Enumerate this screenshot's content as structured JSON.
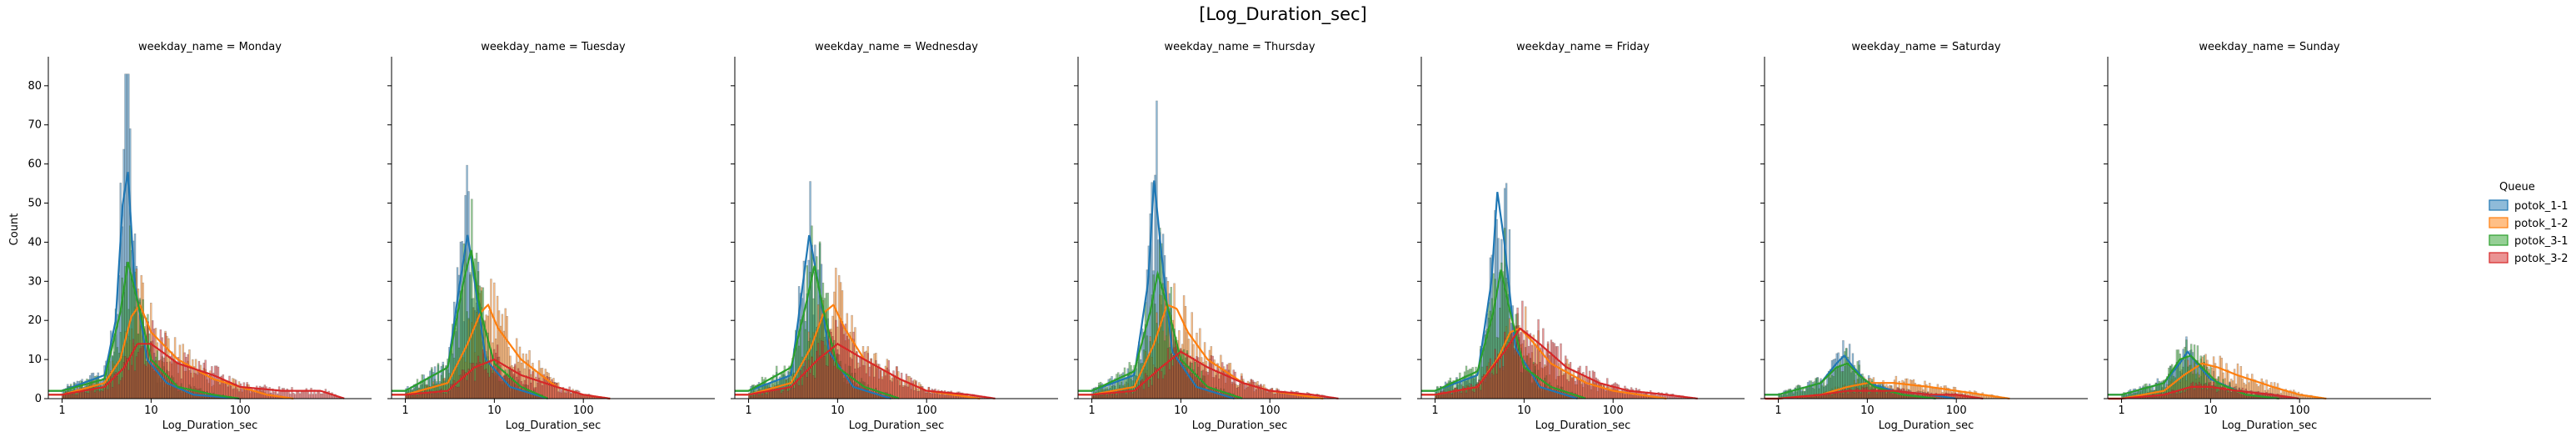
{
  "chart_data": {
    "type": "histogram",
    "title": "[Log_Duration_sec]",
    "xlabel": "Log_Duration_sec",
    "ylabel": "Count",
    "x_scale": "log",
    "xlim": [
      0.7,
      3000
    ],
    "ylim": [
      0,
      87
    ],
    "y_ticks": [
      0,
      10,
      20,
      30,
      40,
      50,
      60,
      70,
      80
    ],
    "x_ticks": [
      1,
      10,
      100
    ],
    "grid": false,
    "legend": {
      "title": "Queue",
      "placement": "right"
    },
    "series": [
      {
        "name": "potok_1-1",
        "color": "#1f77b4"
      },
      {
        "name": "potok_1-2",
        "color": "#ff7f0e"
      },
      {
        "name": "potok_3-1",
        "color": "#2ca02c"
      },
      {
        "name": "potok_3-2",
        "color": "#d62728"
      }
    ],
    "facets": [
      {
        "label": "weekday_name = Monday",
        "kde": {
          "potok_1-1": [
            [
              1,
              2
            ],
            [
              3,
              6
            ],
            [
              4,
              20
            ],
            [
              4.8,
              50
            ],
            [
              5.5,
              58
            ],
            [
              6.5,
              30
            ],
            [
              9,
              10
            ],
            [
              15,
              4
            ],
            [
              30,
              1
            ],
            [
              100,
              0
            ]
          ],
          "potok_1-2": [
            [
              1,
              1
            ],
            [
              3,
              4
            ],
            [
              4.5,
              10
            ],
            [
              6,
              21
            ],
            [
              7.5,
              24
            ],
            [
              10,
              17
            ],
            [
              20,
              10
            ],
            [
              50,
              5
            ],
            [
              100,
              3
            ],
            [
              200,
              1
            ],
            [
              400,
              0
            ]
          ],
          "potok_3-1": [
            [
              1,
              2
            ],
            [
              3,
              5
            ],
            [
              4.5,
              22
            ],
            [
              5.5,
              35
            ],
            [
              7,
              25
            ],
            [
              10,
              10
            ],
            [
              20,
              3
            ],
            [
              50,
              1
            ],
            [
              100,
              0
            ]
          ],
          "potok_3-2": [
            [
              1,
              1
            ],
            [
              3,
              3
            ],
            [
              5,
              8
            ],
            [
              7,
              14
            ],
            [
              10,
              14
            ],
            [
              20,
              9
            ],
            [
              50,
              6
            ],
            [
              100,
              3
            ],
            [
              300,
              2
            ],
            [
              800,
              2
            ],
            [
              1500,
              0
            ]
          ]
        }
      },
      {
        "label": "weekday_name = Tuesday",
        "kde": {
          "potok_1-1": [
            [
              1,
              2
            ],
            [
              3,
              8
            ],
            [
              4,
              28
            ],
            [
              5,
              42
            ],
            [
              6,
              30
            ],
            [
              8,
              10
            ],
            [
              15,
              3
            ],
            [
              40,
              0
            ]
          ],
          "potok_1-2": [
            [
              1,
              1
            ],
            [
              3,
              4
            ],
            [
              5,
              14
            ],
            [
              7,
              22
            ],
            [
              8.5,
              24
            ],
            [
              11,
              18
            ],
            [
              20,
              10
            ],
            [
              50,
              3
            ],
            [
              100,
              1
            ],
            [
              200,
              0
            ]
          ],
          "potok_3-1": [
            [
              1,
              2
            ],
            [
              3,
              8
            ],
            [
              4.5,
              30
            ],
            [
              5.5,
              38
            ],
            [
              7,
              22
            ],
            [
              10,
              9
            ],
            [
              20,
              3
            ],
            [
              40,
              0
            ]
          ],
          "potok_3-2": [
            [
              1,
              1
            ],
            [
              3,
              2
            ],
            [
              6,
              8
            ],
            [
              10,
              10
            ],
            [
              20,
              6
            ],
            [
              50,
              3
            ],
            [
              100,
              1
            ],
            [
              200,
              0
            ]
          ]
        }
      },
      {
        "label": "weekday_name = Wednesday",
        "kde": {
          "potok_1-1": [
            [
              1,
              2
            ],
            [
              3,
              6
            ],
            [
              4,
              28
            ],
            [
              4.8,
              42
            ],
            [
              6,
              30
            ],
            [
              8,
              12
            ],
            [
              15,
              3
            ],
            [
              40,
              0
            ]
          ],
          "potok_1-2": [
            [
              1,
              1
            ],
            [
              3,
              4
            ],
            [
              5,
              13
            ],
            [
              7,
              22
            ],
            [
              9,
              24
            ],
            [
              12,
              18
            ],
            [
              20,
              10
            ],
            [
              50,
              5
            ],
            [
              100,
              2
            ],
            [
              200,
              1
            ],
            [
              400,
              0
            ]
          ],
          "potok_3-1": [
            [
              1,
              2
            ],
            [
              3,
              8
            ],
            [
              4.5,
              25
            ],
            [
              5.5,
              34
            ],
            [
              7,
              22
            ],
            [
              10,
              8
            ],
            [
              20,
              3
            ],
            [
              50,
              0
            ]
          ],
          "potok_3-2": [
            [
              1,
              1
            ],
            [
              3,
              3
            ],
            [
              6,
              10
            ],
            [
              10,
              14
            ],
            [
              20,
              10
            ],
            [
              50,
              5
            ],
            [
              100,
              2
            ],
            [
              300,
              1
            ],
            [
              600,
              0
            ]
          ]
        }
      },
      {
        "label": "weekday_name = Thursday",
        "kde": {
          "potok_1-1": [
            [
              1,
              2
            ],
            [
              3,
              6
            ],
            [
              4.3,
              30
            ],
            [
              5,
              56
            ],
            [
              6,
              38
            ],
            [
              8,
              12
            ],
            [
              15,
              3
            ],
            [
              40,
              0
            ]
          ],
          "potok_1-2": [
            [
              1,
              1
            ],
            [
              3,
              3
            ],
            [
              5,
              14
            ],
            [
              7,
              24
            ],
            [
              9,
              23
            ],
            [
              12,
              17
            ],
            [
              20,
              10
            ],
            [
              50,
              4
            ],
            [
              100,
              2
            ],
            [
              200,
              1
            ],
            [
              400,
              0
            ]
          ],
          "potok_3-1": [
            [
              1,
              2
            ],
            [
              3,
              7
            ],
            [
              4.5,
              22
            ],
            [
              5.5,
              32
            ],
            [
              7,
              24
            ],
            [
              10,
              10
            ],
            [
              20,
              3
            ],
            [
              50,
              0
            ]
          ],
          "potok_3-2": [
            [
              1,
              1
            ],
            [
              3,
              2
            ],
            [
              6,
              8
            ],
            [
              10,
              12
            ],
            [
              20,
              8
            ],
            [
              50,
              4
            ],
            [
              100,
              2
            ],
            [
              300,
              1
            ],
            [
              600,
              0
            ]
          ]
        }
      },
      {
        "label": "weekday_name = Friday",
        "kde": {
          "potok_1-1": [
            [
              1,
              2
            ],
            [
              3,
              6
            ],
            [
              4.3,
              30
            ],
            [
              5,
              53
            ],
            [
              6,
              40
            ],
            [
              8,
              13
            ],
            [
              15,
              3
            ],
            [
              40,
              0
            ]
          ],
          "potok_1-2": [
            [
              1,
              1
            ],
            [
              3,
              3
            ],
            [
              5,
              10
            ],
            [
              7,
              17
            ],
            [
              9,
              18
            ],
            [
              12,
              15
            ],
            [
              20,
              9
            ],
            [
              50,
              4
            ],
            [
              100,
              2
            ],
            [
              200,
              1
            ],
            [
              400,
              0
            ]
          ],
          "potok_3-1": [
            [
              1,
              2
            ],
            [
              3,
              7
            ],
            [
              4.5,
              22
            ],
            [
              5.5,
              33
            ],
            [
              7,
              22
            ],
            [
              10,
              8
            ],
            [
              20,
              3
            ],
            [
              50,
              0
            ]
          ],
          "potok_3-2": [
            [
              1,
              1
            ],
            [
              3,
              3
            ],
            [
              6,
              12
            ],
            [
              9,
              18
            ],
            [
              15,
              14
            ],
            [
              30,
              8
            ],
            [
              70,
              4
            ],
            [
              150,
              2
            ],
            [
              400,
              1
            ],
            [
              900,
              0
            ]
          ]
        }
      },
      {
        "label": "weekday_name = Saturday",
        "kde": {
          "potok_1-1": [
            [
              1,
              1
            ],
            [
              3,
              4
            ],
            [
              4.5,
              9
            ],
            [
              5.5,
              11
            ],
            [
              7,
              8
            ],
            [
              10,
              4
            ],
            [
              20,
              2
            ],
            [
              50,
              1
            ],
            [
              100,
              0
            ]
          ],
          "potok_1-2": [
            [
              1,
              0
            ],
            [
              3,
              1
            ],
            [
              6,
              3
            ],
            [
              10,
              4
            ],
            [
              20,
              4
            ],
            [
              50,
              3
            ],
            [
              100,
              2
            ],
            [
              200,
              1
            ],
            [
              400,
              0
            ]
          ],
          "potok_3-1": [
            [
              1,
              1
            ],
            [
              3,
              4
            ],
            [
              4.5,
              8
            ],
            [
              6,
              9
            ],
            [
              8,
              6
            ],
            [
              12,
              3
            ],
            [
              25,
              1
            ],
            [
              60,
              0
            ]
          ],
          "potok_3-2": [
            [
              1,
              0
            ],
            [
              3,
              1
            ],
            [
              6,
              2
            ],
            [
              10,
              2
            ],
            [
              20,
              2
            ],
            [
              50,
              1
            ],
            [
              100,
              1
            ],
            [
              200,
              0
            ]
          ]
        }
      },
      {
        "label": "weekday_name = Sunday",
        "kde": {
          "potok_1-1": [
            [
              1,
              1
            ],
            [
              3,
              4
            ],
            [
              4.5,
              9
            ],
            [
              5.5,
              12
            ],
            [
              7,
              9
            ],
            [
              10,
              5
            ],
            [
              20,
              2
            ],
            [
              50,
              1
            ],
            [
              100,
              0
            ]
          ],
          "potok_1-2": [
            [
              1,
              0
            ],
            [
              3,
              2
            ],
            [
              5,
              6
            ],
            [
              8,
              9
            ],
            [
              12,
              8
            ],
            [
              20,
              6
            ],
            [
              50,
              3
            ],
            [
              100,
              1
            ],
            [
              200,
              0
            ]
          ],
          "potok_3-1": [
            [
              1,
              1
            ],
            [
              3,
              4
            ],
            [
              4.5,
              10
            ],
            [
              6,
              11
            ],
            [
              8,
              8
            ],
            [
              12,
              4
            ],
            [
              25,
              1
            ],
            [
              60,
              0
            ]
          ],
          "potok_3-2": [
            [
              1,
              0
            ],
            [
              3,
              1
            ],
            [
              6,
              3
            ],
            [
              10,
              3
            ],
            [
              20,
              2
            ],
            [
              50,
              1
            ],
            [
              100,
              0
            ]
          ]
        }
      }
    ]
  }
}
